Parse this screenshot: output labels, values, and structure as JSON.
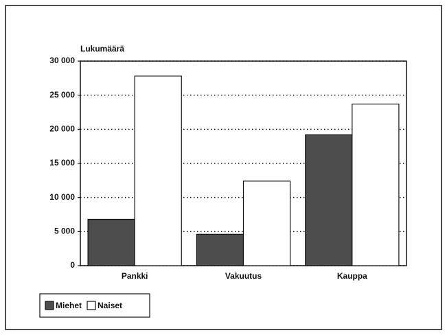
{
  "chart_data": {
    "type": "bar",
    "y_axis_label": "Lukumäärä",
    "categories": [
      "Pankki",
      "Vakuutus",
      "Kauppa"
    ],
    "series": [
      {
        "name": "Miehet",
        "color": "#4d4d4d",
        "values": [
          6800,
          4600,
          19200
        ]
      },
      {
        "name": "Naiset",
        "color": "#ffffff",
        "values": [
          27800,
          12400,
          23700
        ]
      }
    ],
    "ylim": [
      0,
      30000
    ],
    "yticks": [
      0,
      {
        "value": 5000,
        "label": "5 000"
      },
      {
        "value": 10000,
        "label": "10 000"
      },
      {
        "value": 15000,
        "label": "15 000"
      },
      {
        "value": 20000,
        "label": "20 000"
      },
      {
        "value": 25000,
        "label": "25 000"
      },
      {
        "value": 30000,
        "label": "30 000"
      }
    ],
    "grid": true,
    "legend": "bottom-left"
  }
}
